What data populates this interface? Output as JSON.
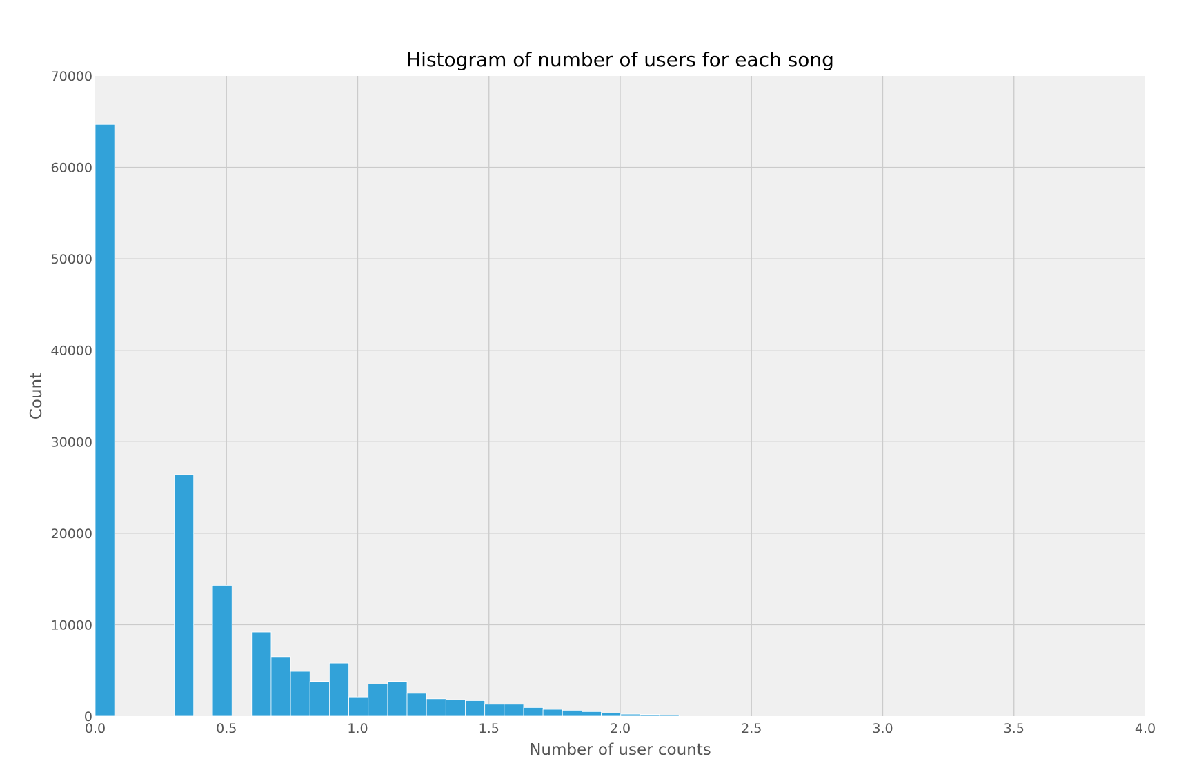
{
  "chart_data": {
    "type": "bar",
    "title": "Histogram of number of users for each song",
    "xlabel": "Number of user counts",
    "ylabel": "Count",
    "xlim": [
      0.0,
      4.0
    ],
    "ylim": [
      0,
      70000
    ],
    "grid": true,
    "bin_width": 0.074,
    "x_ticks": [
      "0.0",
      "0.5",
      "1.0",
      "1.5",
      "2.0",
      "2.5",
      "3.0",
      "3.5",
      "4.0"
    ],
    "y_ticks": [
      "0",
      "10000",
      "20000",
      "30000",
      "40000",
      "50000",
      "60000",
      "70000"
    ],
    "bins": [
      {
        "x": 0.0,
        "value": 64700
      },
      {
        "x": 0.301,
        "value": 26400
      },
      {
        "x": 0.447,
        "value": 14300
      },
      {
        "x": 0.596,
        "value": 9200
      },
      {
        "x": 0.67,
        "value": 6500
      },
      {
        "x": 0.744,
        "value": 4900
      },
      {
        "x": 0.818,
        "value": 3800
      },
      {
        "x": 0.892,
        "value": 5800
      },
      {
        "x": 0.966,
        "value": 2100
      },
      {
        "x": 1.04,
        "value": 3500
      },
      {
        "x": 1.114,
        "value": 3800
      },
      {
        "x": 1.188,
        "value": 2500
      },
      {
        "x": 1.262,
        "value": 1900
      },
      {
        "x": 1.336,
        "value": 1800
      },
      {
        "x": 1.41,
        "value": 1700
      },
      {
        "x": 1.484,
        "value": 1300
      },
      {
        "x": 1.558,
        "value": 1300
      },
      {
        "x": 1.632,
        "value": 950
      },
      {
        "x": 1.706,
        "value": 750
      },
      {
        "x": 1.78,
        "value": 650
      },
      {
        "x": 1.854,
        "value": 500
      },
      {
        "x": 1.928,
        "value": 350
      },
      {
        "x": 2.002,
        "value": 220
      },
      {
        "x": 2.076,
        "value": 180
      },
      {
        "x": 2.15,
        "value": 100
      }
    ]
  },
  "colors": {
    "bar": "#32a2d9",
    "plot_bg": "#f0f0f0",
    "grid": "#cbcbcb",
    "tick_text": "#555555",
    "title_text": "#000000"
  }
}
